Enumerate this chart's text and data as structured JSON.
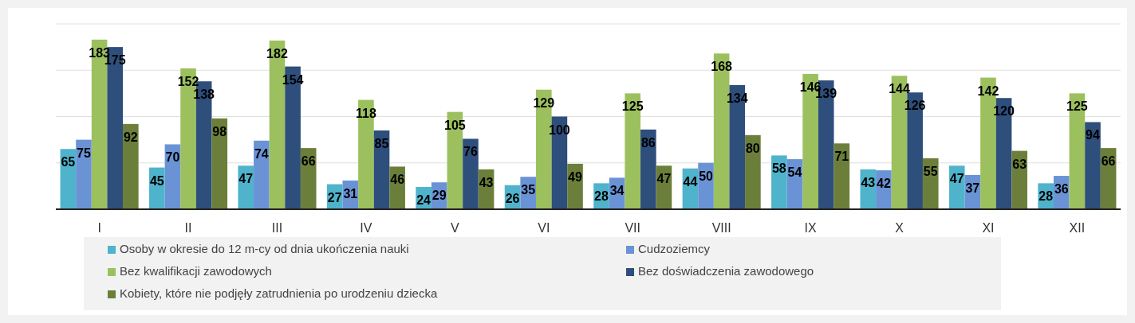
{
  "chart_data": {
    "type": "bar",
    "categories": [
      "I",
      "II",
      "III",
      "IV",
      "V",
      "VI",
      "VII",
      "VIII",
      "IX",
      "X",
      "XI",
      "XII"
    ],
    "series": [
      {
        "name": "Osoby w okresie do 12 m-cy od dnia ukończenia nauki",
        "color": "#4fb3cc",
        "values": [
          65,
          45,
          47,
          27,
          24,
          26,
          28,
          44,
          58,
          43,
          47,
          28
        ]
      },
      {
        "name": "Cudzoziemcy",
        "color": "#6a93d6",
        "values": [
          75,
          70,
          74,
          31,
          29,
          35,
          34,
          50,
          54,
          42,
          37,
          36
        ]
      },
      {
        "name": "Bez kwalifikacji zawodowych",
        "color": "#9cc05e",
        "values": [
          183,
          152,
          182,
          118,
          105,
          129,
          125,
          168,
          146,
          144,
          142,
          125
        ]
      },
      {
        "name": "Bez doświadczenia zawodowego",
        "color": "#2e4e7c",
        "values": [
          175,
          138,
          154,
          85,
          76,
          100,
          86,
          134,
          139,
          126,
          120,
          94
        ]
      },
      {
        "name": "Kobiety, które nie podjęły zatrudnienia po urodzeniu dziecka",
        "color": "#6b7f3a",
        "values": [
          92,
          98,
          66,
          46,
          43,
          49,
          47,
          80,
          71,
          55,
          63,
          66
        ]
      }
    ],
    "ylim": [
      0,
      200
    ],
    "yticks": [
      {
        "value": 50,
        "label": null
      },
      {
        "value": 100,
        "label": null
      },
      {
        "value": 150,
        "label": null
      },
      {
        "value": 200,
        "label": null
      }
    ],
    "grid": "y",
    "tick_labels": "x",
    "data_labels": true,
    "legend": "bottom"
  }
}
